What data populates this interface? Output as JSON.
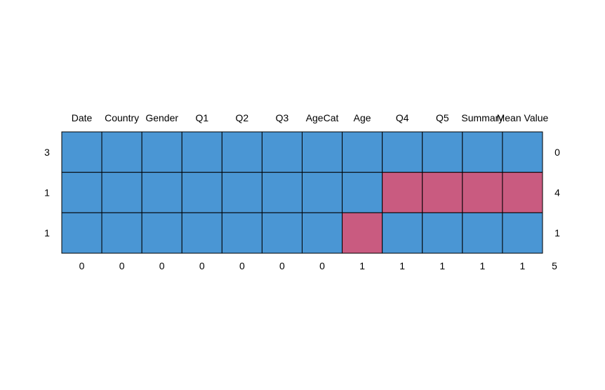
{
  "chart_data": {
    "type": "heatmap",
    "title": "",
    "columns": [
      "Date",
      "Country",
      "Gender",
      "Q1",
      "Q2",
      "Q3",
      "AgeCat",
      "Age",
      "Q4",
      "Q5",
      "Summary",
      "Mean Value"
    ],
    "row_counts": [
      3,
      1,
      1
    ],
    "row_missing_totals": [
      0,
      4,
      1
    ],
    "column_missing_counts": [
      0,
      0,
      0,
      0,
      0,
      0,
      0,
      1,
      1,
      1,
      1,
      1
    ],
    "total_missing": 5,
    "matrix": [
      [
        0,
        0,
        0,
        0,
        0,
        0,
        0,
        0,
        0,
        0,
        0,
        0
      ],
      [
        0,
        0,
        0,
        0,
        0,
        0,
        0,
        0,
        1,
        1,
        1,
        1
      ],
      [
        0,
        0,
        0,
        0,
        0,
        0,
        0,
        1,
        0,
        0,
        0,
        0
      ]
    ],
    "colors": {
      "observed": "#4A96D4",
      "missing": "#C95B80",
      "border": "#000000"
    }
  }
}
